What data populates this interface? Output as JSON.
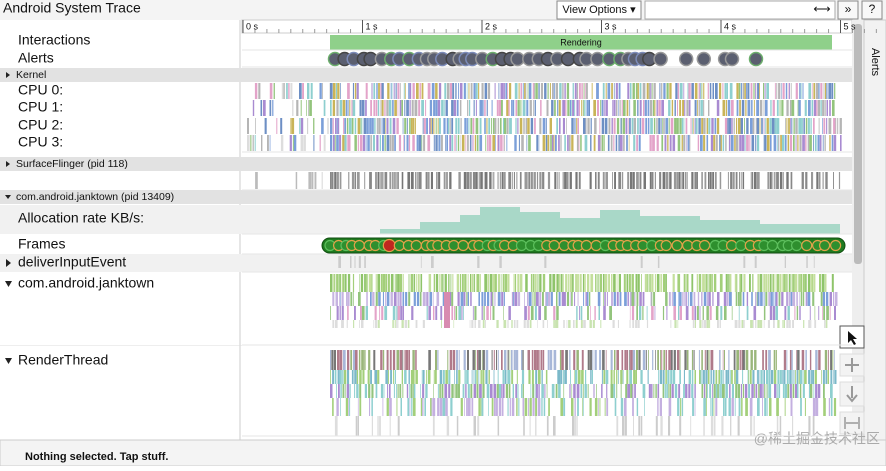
{
  "header": {
    "title": "Android System Trace",
    "view_options": "View Options ▾",
    "zoom": "⟷",
    "more": "»",
    "help": "?"
  },
  "timeline": {
    "ticks": [
      "0 s",
      "1 s",
      "2 s",
      "3 s",
      "4 s",
      "5 s"
    ]
  },
  "tracks": {
    "interactions": "Interactions",
    "rendering": "Rendering",
    "alerts": "Alerts",
    "kernel": "Kernel",
    "cpus": [
      "CPU 0:",
      "CPU 1:",
      "CPU 2:",
      "CPU 3:"
    ],
    "surfaceflinger": "SurfaceFlinger (pid 118)",
    "process": "com.android.janktown (pid 13409)",
    "allocation": "Allocation rate KB/s:",
    "frames": "Frames",
    "deliver_input": "deliverInputEvent",
    "main_thread": "com.android.janktown",
    "render_thread": "RenderThread"
  },
  "sidebar": {
    "title": "Alerts"
  },
  "status": "Nothing selected. Tap stuff.",
  "watermark": "@稀土掘金技术社区"
}
